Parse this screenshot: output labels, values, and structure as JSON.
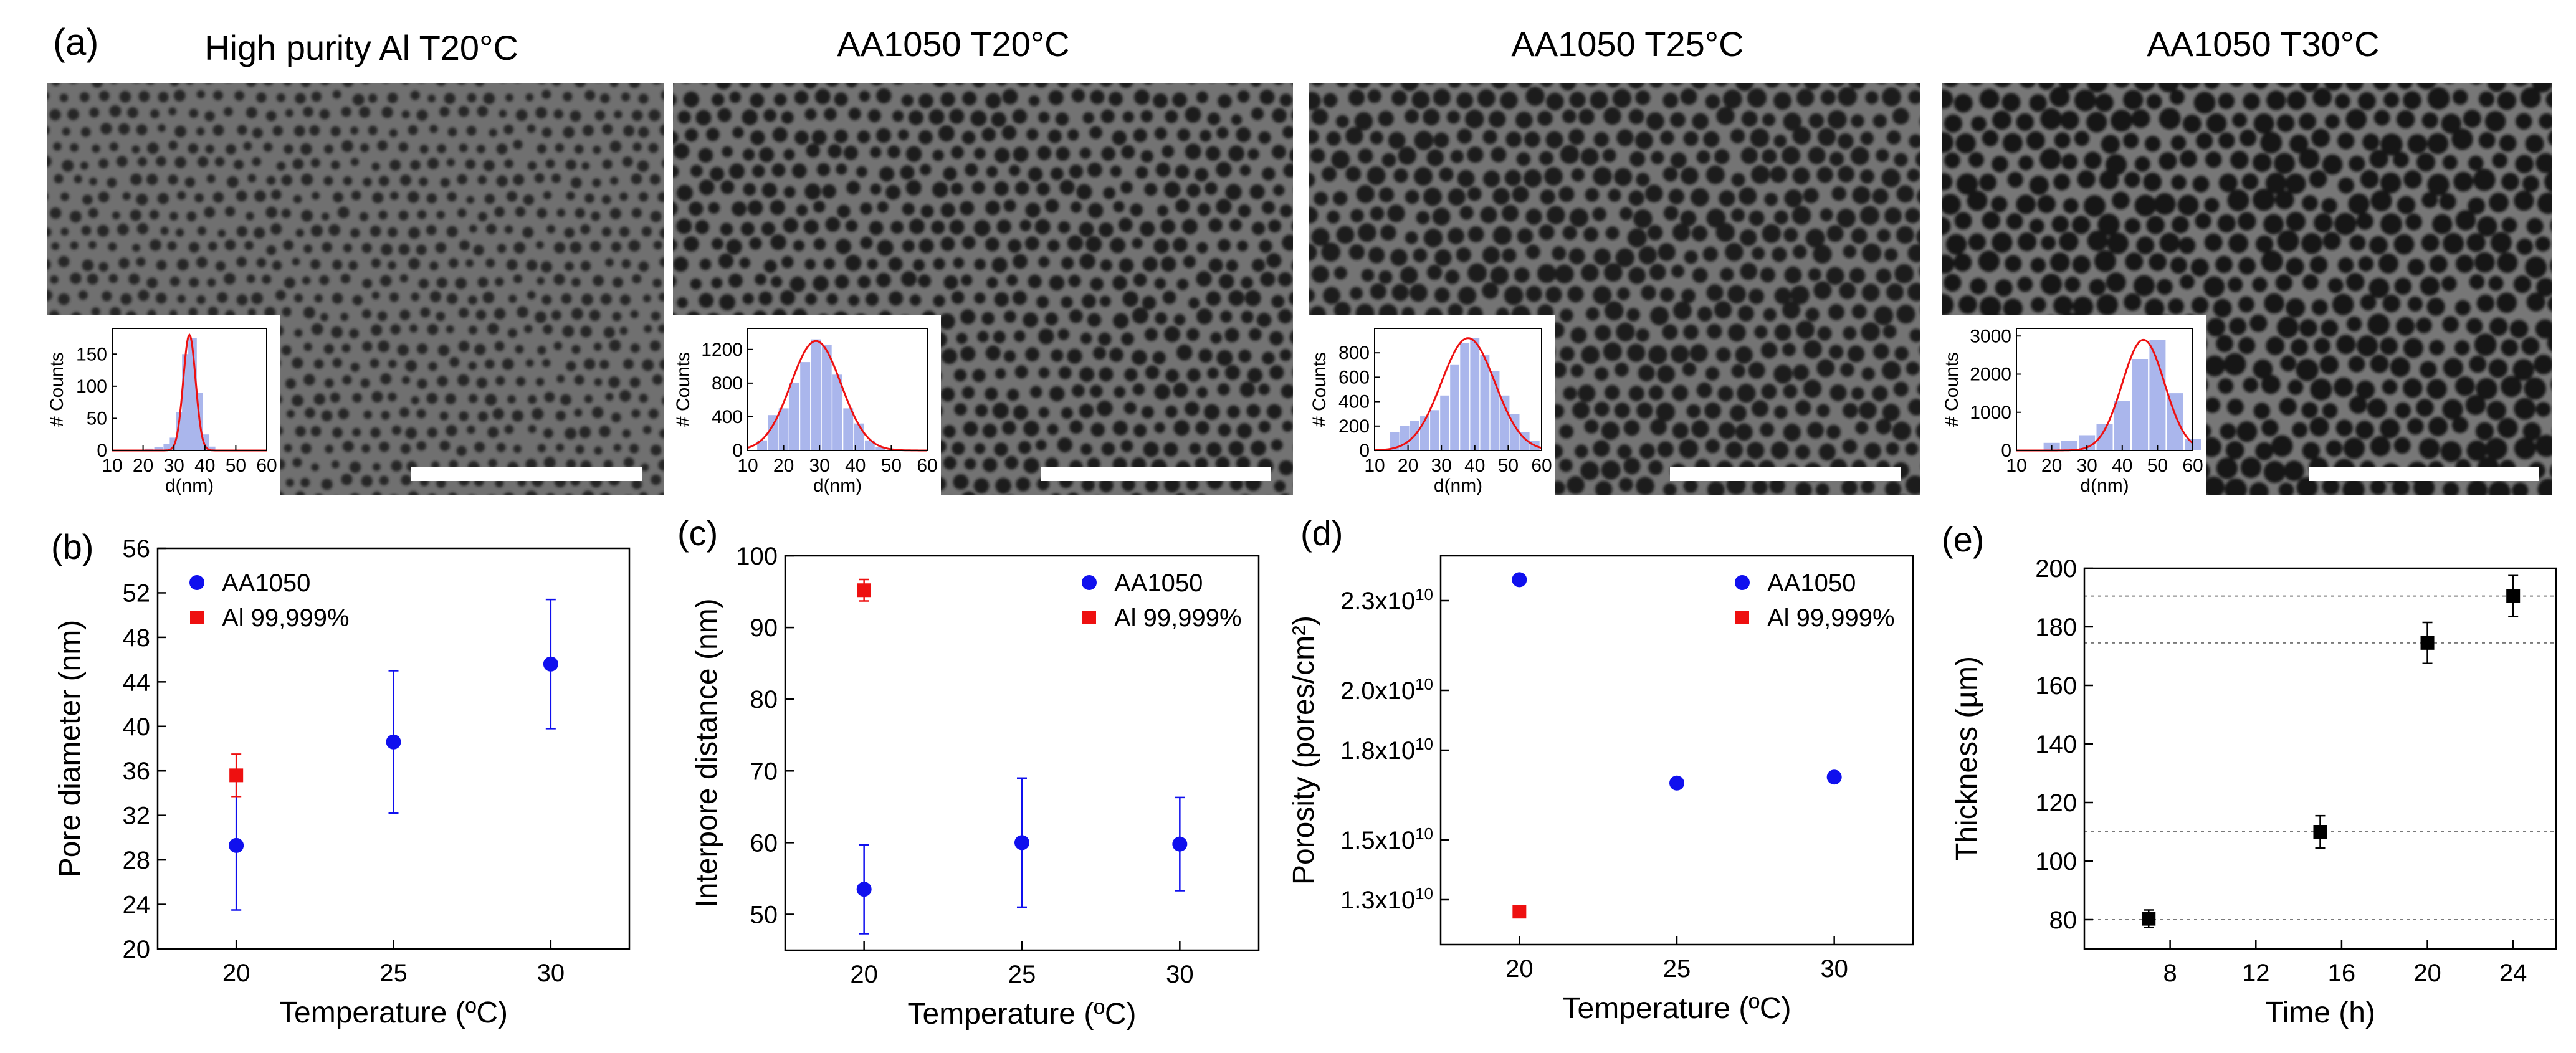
{
  "figure": {
    "top_panel_label": "(a)",
    "sem_titles": [
      "High purity Al T20°C",
      "AA1050 T20°C",
      "AA1050 T25°C",
      "AA1050 T30°C"
    ],
    "inset_xlabel": "d(nm)",
    "inset_ylabel": "# Counts"
  },
  "colors": {
    "aa1050": "#1010ee",
    "al99999": "#ee1010",
    "thickness": "#000000",
    "hist_bar": "#aab6ec",
    "fit_curve": "#ee1111",
    "sem_bg": "#6a6a6a",
    "pore": "#1e1e1e",
    "scalebar": "#ffffff"
  },
  "chart_data": [
    {
      "id": "a1-inset",
      "type": "bar",
      "title": "High purity Al T20°C inset histogram",
      "xlabel": "d(nm)",
      "ylabel": "# Counts",
      "xlim": [
        10,
        60
      ],
      "ylim": [
        0,
        190
      ],
      "xticks": [
        10,
        20,
        30,
        40,
        50,
        60
      ],
      "yticks": [
        0,
        50,
        100,
        150
      ],
      "bin_centers": [
        22,
        25,
        28,
        30,
        32,
        34,
        36,
        38,
        40,
        42
      ],
      "values": [
        3,
        5,
        10,
        20,
        60,
        150,
        175,
        90,
        25,
        6
      ],
      "fit": {
        "mean": 35,
        "sigma": 2.0,
        "peak": 180
      }
    },
    {
      "id": "a2-inset",
      "type": "bar",
      "title": "AA1050 T20°C inset histogram",
      "xlabel": "d(nm)",
      "ylabel": "# Counts",
      "xlim": [
        10,
        60
      ],
      "ylim": [
        0,
        1450
      ],
      "xticks": [
        10,
        20,
        30,
        40,
        50,
        60
      ],
      "yticks": [
        0,
        400,
        800,
        1200
      ],
      "bin_centers": [
        14,
        17,
        20,
        23,
        26,
        29,
        32,
        35,
        38,
        41,
        44,
        47
      ],
      "values": [
        120,
        420,
        500,
        800,
        1050,
        1320,
        1250,
        900,
        500,
        320,
        120,
        40
      ],
      "fit": {
        "mean": 29,
        "sigma": 7,
        "peak": 1300
      }
    },
    {
      "id": "a3-inset",
      "type": "bar",
      "title": "AA1050 T25°C inset histogram",
      "xlabel": "d(nm)",
      "ylabel": "# Counts",
      "xlim": [
        10,
        60
      ],
      "ylim": [
        0,
        1000
      ],
      "xticks": [
        10,
        20,
        30,
        40,
        50,
        60
      ],
      "yticks": [
        0,
        200,
        400,
        600,
        800
      ],
      "bin_centers": [
        16,
        19,
        22,
        25,
        28,
        31,
        34,
        37,
        40,
        43,
        46,
        49,
        52,
        55,
        58
      ],
      "values": [
        150,
        200,
        240,
        280,
        330,
        450,
        700,
        880,
        920,
        780,
        650,
        450,
        300,
        150,
        80
      ],
      "fit": {
        "mean": 38,
        "sigma": 8,
        "peak": 920
      }
    },
    {
      "id": "a4-inset",
      "type": "bar",
      "title": "AA1050 T30°C inset histogram",
      "xlabel": "d(nm)",
      "ylabel": "# Counts",
      "xlim": [
        10,
        60
      ],
      "ylim": [
        0,
        3200
      ],
      "xticks": [
        10,
        20,
        30,
        40,
        50,
        60
      ],
      "yticks": [
        0,
        1000,
        2000,
        3000
      ],
      "bin_centers": [
        20,
        25,
        30,
        35,
        40,
        45,
        50,
        55,
        60
      ],
      "values": [
        200,
        250,
        400,
        700,
        1300,
        2400,
        2900,
        1500,
        300
      ],
      "fit": {
        "mean": 46,
        "sigma": 6,
        "peak": 2900
      }
    },
    {
      "id": "b",
      "panel_label": "(b)",
      "type": "scatter",
      "xlabel": "Temperature (ºC)",
      "ylabel": "Pore diameter (nm)",
      "xlim": [
        17.5,
        32.5
      ],
      "ylim": [
        20,
        56
      ],
      "xticks": [
        20,
        25,
        30
      ],
      "yticks": [
        20,
        24,
        28,
        32,
        36,
        40,
        44,
        48,
        52,
        56
      ],
      "legend": {
        "position": "top-left",
        "entries": [
          "AA1050",
          "Al 99,999%"
        ]
      },
      "series": [
        {
          "name": "AA1050",
          "marker": "circle",
          "x": [
            20,
            25,
            30
          ],
          "y": [
            29.3,
            38.6,
            45.6
          ],
          "err": [
            5.8,
            6.4,
            5.8
          ]
        },
        {
          "name": "Al 99,999%",
          "marker": "square",
          "x": [
            20
          ],
          "y": [
            35.6
          ],
          "err": [
            1.9
          ]
        }
      ]
    },
    {
      "id": "c",
      "panel_label": "(c)",
      "type": "scatter",
      "xlabel": "Temperature (ºC)",
      "ylabel": "Interpore distance (nm)",
      "xlim": [
        17.5,
        32.5
      ],
      "ylim": [
        45,
        100
      ],
      "xticks": [
        20,
        25,
        30
      ],
      "yticks": [
        50,
        60,
        70,
        80,
        90,
        100
      ],
      "legend": {
        "position": "top-right",
        "entries": [
          "AA1050",
          "Al 99,999%"
        ]
      },
      "series": [
        {
          "name": "AA1050",
          "marker": "circle",
          "x": [
            20,
            25,
            30
          ],
          "y": [
            53.5,
            60,
            59.8
          ],
          "err": [
            6.2,
            9,
            6.5
          ]
        },
        {
          "name": "Al 99,999%",
          "marker": "square",
          "x": [
            20
          ],
          "y": [
            95.2
          ],
          "err": [
            1.5
          ]
        }
      ]
    },
    {
      "id": "d",
      "panel_label": "(d)",
      "type": "scatter",
      "xlabel": "Temperature (ºC)",
      "ylabel": "Porosity (pores/cm²)",
      "xlim": [
        17.5,
        32.5
      ],
      "ylim": [
        11500000000.0,
        24500000000.0
      ],
      "xticks": [
        20,
        25,
        30
      ],
      "yticks": [
        13000000000.0,
        15000000000.0,
        18000000000.0,
        20000000000.0,
        23000000000.0
      ],
      "ytick_labels": [
        "1.3x10",
        "1.5x10",
        "1.8x10",
        "2.0x10",
        "2.3x10"
      ],
      "ytick_exponent": "10",
      "legend": {
        "position": "top-right",
        "entries": [
          "AA1050",
          "Al 99,999%"
        ]
      },
      "series": [
        {
          "name": "AA1050",
          "marker": "circle",
          "x": [
            20,
            25,
            30
          ],
          "y": [
            23700000000.0,
            16900000000.0,
            17100000000.0
          ]
        },
        {
          "name": "Al 99,999%",
          "marker": "square",
          "x": [
            20
          ],
          "y": [
            12600000000.0
          ]
        }
      ]
    },
    {
      "id": "e",
      "panel_label": "(e)",
      "type": "scatter",
      "xlabel": "Time (h)",
      "ylabel": "Thickness (µm)",
      "xlim": [
        4,
        26
      ],
      "ylim": [
        70,
        200
      ],
      "xticks": [
        8,
        12,
        16,
        20,
        24
      ],
      "yticks": [
        80,
        100,
        120,
        140,
        160,
        180,
        200
      ],
      "hlines": [
        80,
        110,
        174.5,
        190.5
      ],
      "series": [
        {
          "name": "Thickness",
          "marker": "square",
          "x": [
            7,
            15,
            20,
            24
          ],
          "y": [
            80.3,
            110,
            174.5,
            190.5
          ],
          "err": [
            3,
            5.5,
            7,
            7
          ]
        }
      ]
    }
  ]
}
